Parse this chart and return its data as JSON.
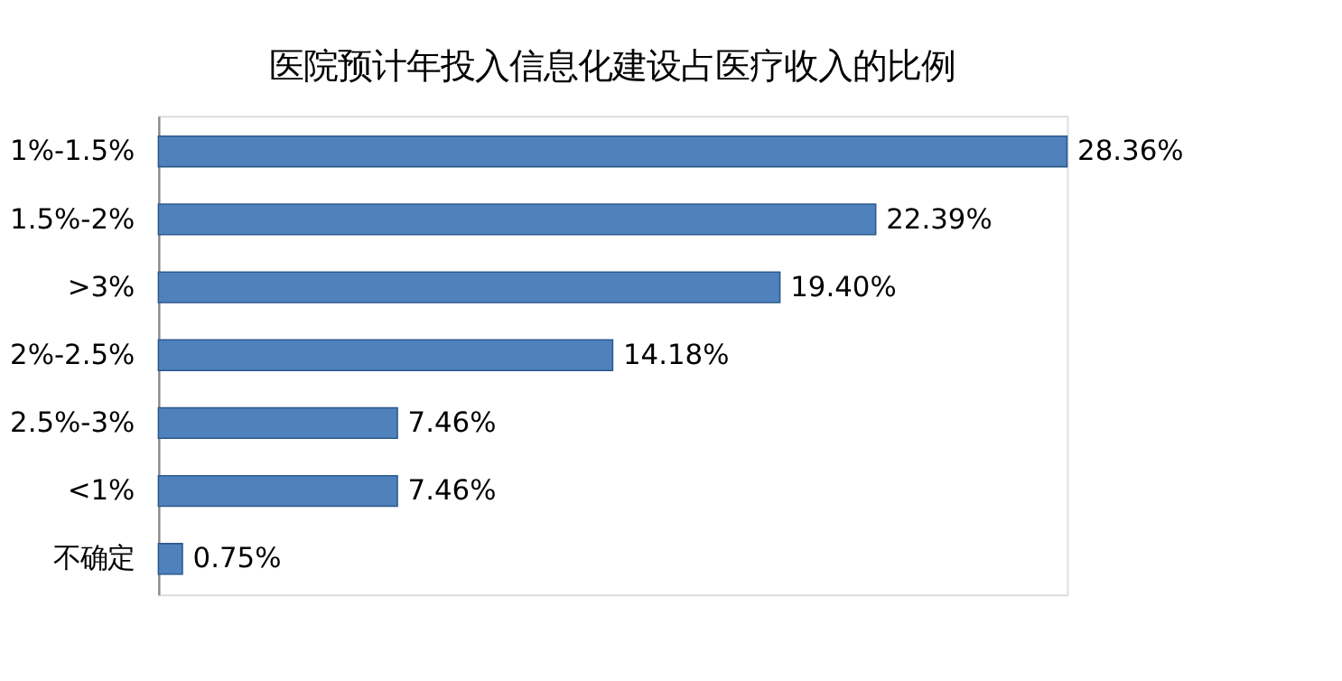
{
  "chart_data": {
    "type": "bar",
    "orientation": "horizontal",
    "title": "医院预计年投入信息化建设占医疗收入的比例",
    "categories": [
      "1%-1.5%",
      "1.5%-2%",
      ">3%",
      "2%-2.5%",
      "2.5%-3%",
      "<1%",
      "不确定"
    ],
    "values": [
      28.36,
      22.39,
      19.4,
      14.18,
      7.46,
      7.46,
      0.75
    ],
    "value_labels": [
      "28.36%",
      "22.39%",
      "19.40%",
      "14.18%",
      "7.46%",
      "7.46%",
      "0.75%"
    ],
    "color": "#4f81bd",
    "tick_labels": "y"
  }
}
